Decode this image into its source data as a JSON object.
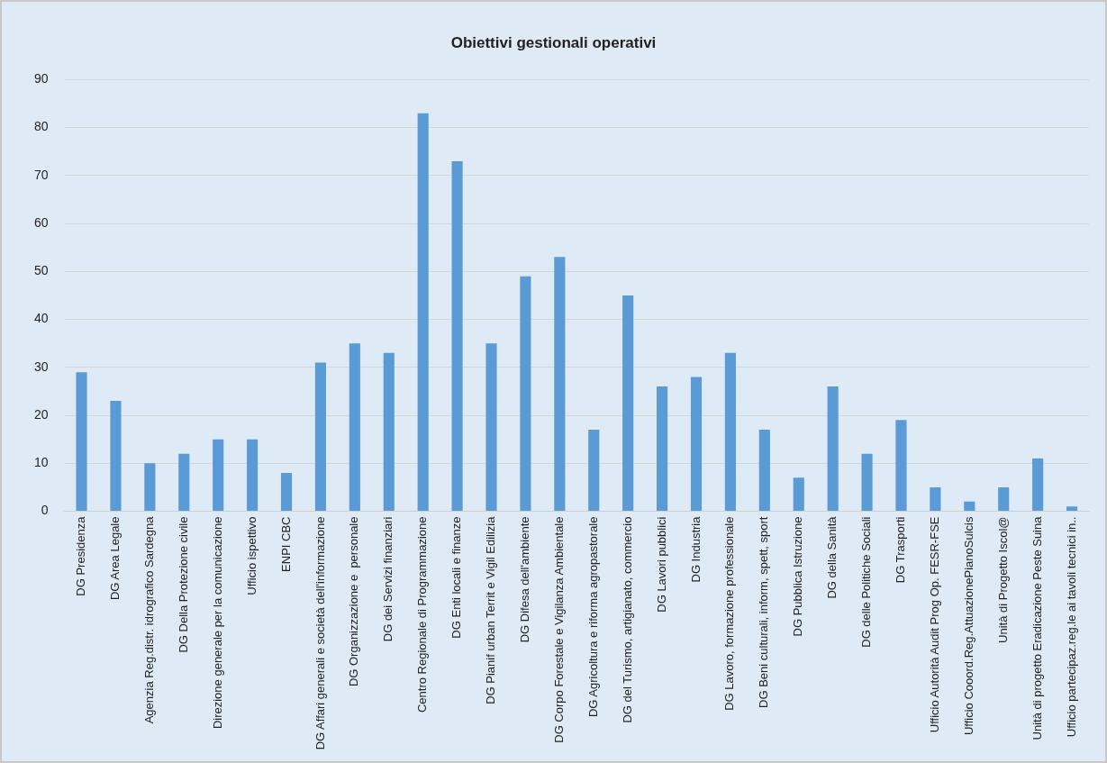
{
  "chart_data": {
    "type": "bar",
    "title": "Obiettivi gestionali operativi",
    "categories": [
      "DG Presidenza",
      "DG Area Legale",
      "Agenzia Reg.distr. idrografico Sardegna",
      "DG Della Protezione civile",
      "Direzione generale per la comunicazione",
      "Ufficio ispettivo",
      "ENPI CBC",
      "DG Affari generali e società dell'informazione",
      "DG Organizzazione e  personale",
      "DG dei Servizi finanziari",
      "Centro Regionale di Programmazione",
      "DG Enti locali e finanze",
      "DG Pianif urban Territ e Vigil Edilizia",
      "DG Difesa dell'ambiente",
      "DG Corpo Forestale e Vigilanza Ambientale",
      "DG Agricoltura e riforma agropastorale",
      "DG del Turismo, artigianato, commercio",
      "DG Lavori pubblici",
      "DG Industria",
      "DG Lavoro, formazione professionale",
      "DG Beni culturali, inform, spett, sport",
      "DG Pubblica Istruzione",
      "DG della Sanità",
      "DG delle Politiche Sociali",
      "DG Trasporti",
      "Ufficio Autorità Audit Prog Op. FESR-FSE",
      "Ufficio Cooord.Reg.AttuazionePianoSulcis",
      "Unità di Progetto Iscol@",
      "Unità di progetto Eradicazione Peste Suina",
      "Ufficio partecipaz.reg.le ai tavoli tecnici in.."
    ],
    "values": [
      29,
      23,
      10,
      12,
      15,
      15,
      8,
      31,
      35,
      33,
      83,
      73,
      35,
      49,
      53,
      17,
      45,
      26,
      28,
      33,
      17,
      7,
      26,
      12,
      19,
      5,
      2,
      5,
      11,
      1
    ],
    "color": "#5b9bd5",
    "ylim": [
      0,
      90
    ],
    "yticks": [
      0,
      10,
      20,
      30,
      40,
      50,
      60,
      70,
      80,
      90
    ],
    "grid": "y"
  }
}
